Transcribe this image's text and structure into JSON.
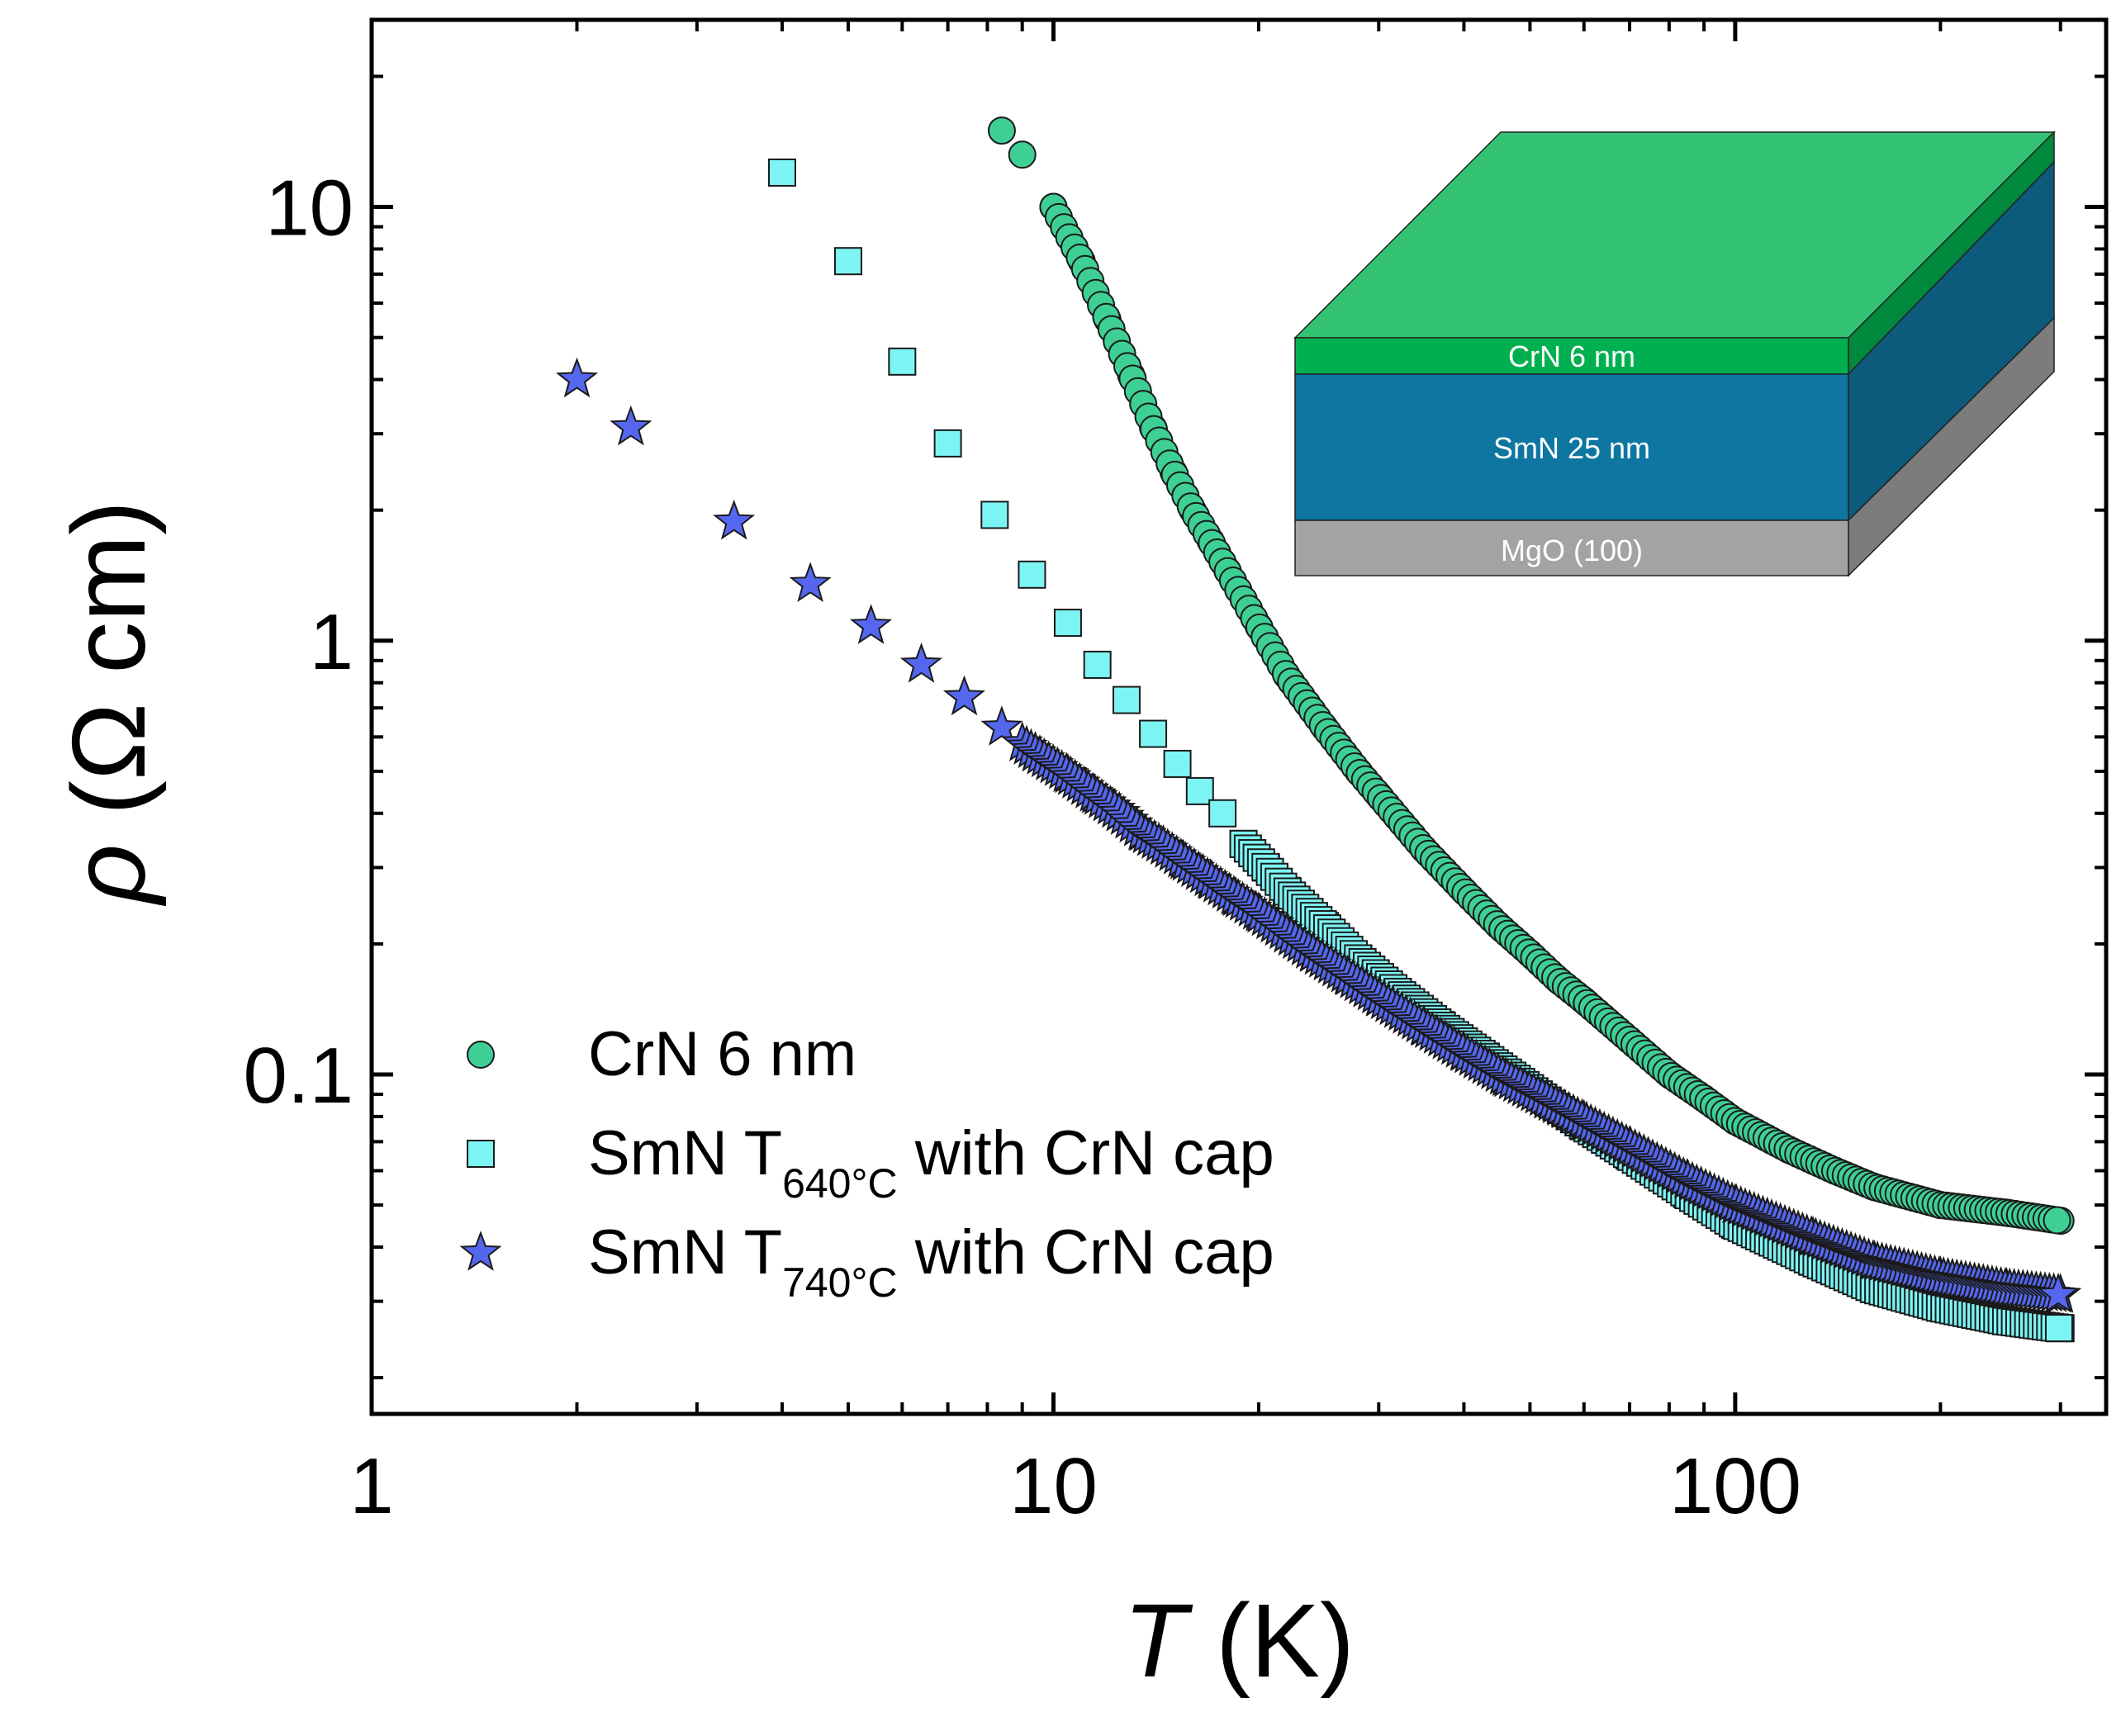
{
  "chart_data": {
    "type": "scatter",
    "title": "",
    "xscale": "log",
    "yscale": "log",
    "xlim": [
      1,
      350
    ],
    "ylim": [
      0.0165,
      27
    ],
    "xlabel": {
      "symbol": "T",
      "unit": "(K)"
    },
    "ylabel": {
      "symbol": "ρ",
      "unit": "(Ω cm)"
    },
    "x_ticks": [
      "1",
      "10",
      "100"
    ],
    "y_ticks": [
      "0.1",
      "1",
      "10"
    ],
    "legend_position": "bottom-left",
    "series": [
      {
        "id": "crn",
        "name": "CrN 6 nm",
        "marker": "circle",
        "color": "#3ecf95",
        "x": [
          8.4,
          9.0,
          10.0,
          11.0,
          12.0,
          13.0,
          14.0,
          15.0,
          16.0,
          17.0,
          18.0,
          20.0,
          22.0,
          25.0,
          28.0,
          30.0,
          35.0,
          40.0,
          45.0,
          50.0,
          55.0,
          60.0,
          70.0,
          80.0,
          90.0,
          100.0,
          120.0,
          140.0,
          160.0,
          200.0,
          250.0,
          300.0
        ],
        "y": [
          15.0,
          13.2,
          10.0,
          7.5,
          5.5,
          4.1,
          3.1,
          2.45,
          2.0,
          1.7,
          1.45,
          1.08,
          0.83,
          0.63,
          0.5,
          0.44,
          0.33,
          0.265,
          0.22,
          0.19,
          0.165,
          0.148,
          0.12,
          0.1,
          0.088,
          0.078,
          0.067,
          0.06,
          0.055,
          0.05,
          0.048,
          0.046
        ]
      },
      {
        "id": "smn640",
        "name": "SmN T",
        "name_sub": "640°C",
        "name_suffix": " with CrN cap",
        "marker": "square",
        "color": "#7df4f4",
        "x": [
          4.0,
          5.0,
          6.0,
          7.0,
          8.2,
          9.3,
          10.5,
          11.6,
          12.8,
          14.0,
          15.2,
          16.4,
          17.7,
          19.0,
          20.5,
          22.0,
          25.0,
          28.0,
          32.0,
          37.0,
          43.0,
          50.0,
          60.0,
          70.0,
          85.0,
          100.0,
          130.0,
          160.0,
          200.0,
          250.0,
          300.0
        ],
        "y": [
          12.0,
          7.5,
          4.4,
          2.85,
          1.95,
          1.42,
          1.1,
          0.88,
          0.73,
          0.61,
          0.52,
          0.45,
          0.4,
          0.34,
          0.3,
          0.265,
          0.22,
          0.185,
          0.155,
          0.13,
          0.11,
          0.093,
          0.076,
          0.065,
          0.053,
          0.045,
          0.037,
          0.032,
          0.029,
          0.027,
          0.026
        ]
      },
      {
        "id": "smn740",
        "name": "SmN T",
        "name_sub": "740°C",
        "name_suffix": " with CrN cap",
        "marker": "star",
        "color": "#5567ee",
        "x": [
          2.0,
          2.4,
          3.4,
          4.4,
          5.4,
          6.4,
          7.4,
          8.4,
          9.4,
          10.5,
          11.5,
          12.5,
          13.5,
          14.5,
          15.5,
          17.0,
          18.5,
          20.0,
          22.0,
          24.0,
          27.0,
          30.0,
          35.0,
          40.0,
          46.0,
          53.0,
          60.0,
          70.0,
          85.0,
          100.0,
          130.0,
          160.0,
          200.0,
          250.0,
          300.0
        ],
        "y": [
          4.0,
          3.1,
          1.88,
          1.35,
          1.08,
          0.88,
          0.74,
          0.63,
          0.55,
          0.49,
          0.44,
          0.4,
          0.36,
          0.335,
          0.31,
          0.28,
          0.255,
          0.235,
          0.21,
          0.19,
          0.168,
          0.15,
          0.128,
          0.112,
          0.098,
          0.087,
          0.078,
          0.068,
          0.057,
          0.05,
          0.042,
          0.037,
          0.034,
          0.032,
          0.031
        ]
      }
    ],
    "inset": {
      "layers": [
        {
          "label": "CrN 6 nm",
          "front": "#00b050",
          "side": "#00893d"
        },
        {
          "label": "SmN 25 nm",
          "front": "#0e76a0",
          "side": "#0c5a7c"
        },
        {
          "label": "MgO (100)",
          "front": "#a3a3a3",
          "side": "#7c7c7c"
        }
      ],
      "top_color": "#33c173"
    }
  }
}
